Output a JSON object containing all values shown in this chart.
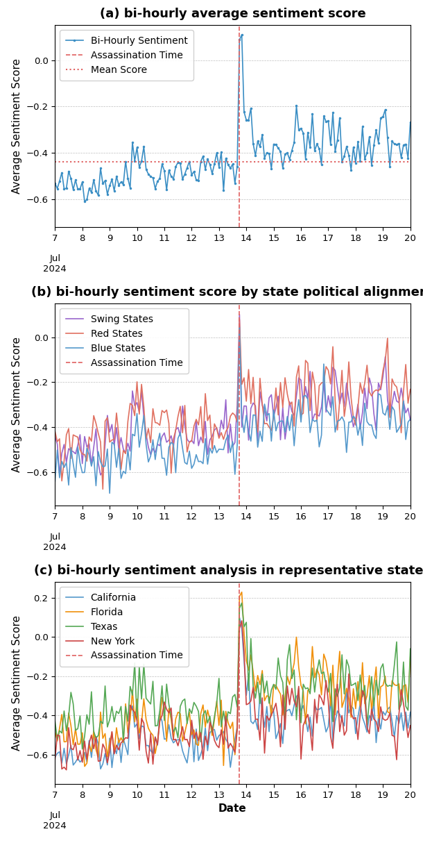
{
  "title_a": "(a) bi-hourly average sentiment score",
  "title_b": "(b) bi-hourly sentiment score by state political alignment",
  "title_c": "(c) bi-hourly sentiment analysis in representative states",
  "xlabel": "Date",
  "ylabel": "Average Sentiment Score",
  "assassination_time": 13.75,
  "mean_score_a": -0.44,
  "xlim": [
    7,
    20
  ],
  "xticks": [
    7,
    8,
    9,
    10,
    11,
    12,
    13,
    14,
    15,
    16,
    17,
    18,
    19,
    20
  ],
  "colors": {
    "overall": "#3a8ec4",
    "assassination": "#e06060",
    "mean": "#e06060",
    "swing": "#9966cc",
    "red": "#e07060",
    "blue": "#5599cc",
    "california": "#5599cc",
    "florida": "#f0900a",
    "texas": "#55a855",
    "newyork": "#cc4444"
  },
  "legend_fontsize": 10,
  "title_fontsize": 13,
  "axis_label_fontsize": 11,
  "tick_fontsize": 9.5
}
